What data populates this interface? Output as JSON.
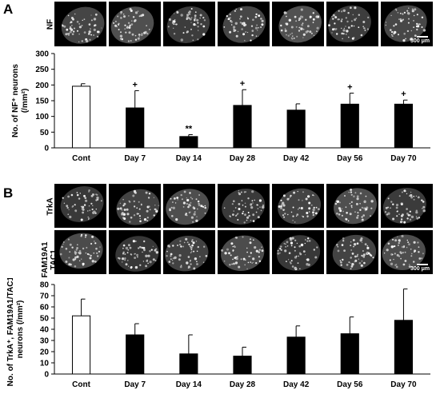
{
  "panels": [
    {
      "letter": "A",
      "image_rows": [
        {
          "label": "NF"
        }
      ],
      "scale_bar_label": "300 μm",
      "chart_data": {
        "type": "bar",
        "categories": [
          "Cont",
          "Day 7",
          "Day 14",
          "Day 28",
          "Day 42",
          "Day 56",
          "Day 70"
        ],
        "values": [
          196,
          127,
          36,
          135,
          120,
          139,
          139
        ],
        "errors": [
          8,
          55,
          6,
          50,
          20,
          35,
          13
        ],
        "bar_colors": [
          "#ffffff",
          "#000000",
          "#000000",
          "#000000",
          "#000000",
          "#000000",
          "#000000"
        ],
        "annotations": [
          "",
          "+",
          "**",
          "+",
          "",
          "+",
          "+"
        ],
        "ylabel": "No. of NF⁺ neurons\n(/mm²)",
        "ylim": [
          0,
          300
        ],
        "yticks": [
          0,
          50,
          100,
          150,
          200,
          250,
          300
        ],
        "grid": false
      }
    },
    {
      "letter": "B",
      "image_rows": [
        {
          "label": "TrkA"
        },
        {
          "label": "FAM19A1\nTAC1"
        }
      ],
      "scale_bar_label": "300 μm",
      "chart_data": {
        "type": "bar",
        "categories": [
          "Cont",
          "Day 7",
          "Day 14",
          "Day 28",
          "Day 42",
          "Day 56",
          "Day 70"
        ],
        "values": [
          52,
          35,
          18,
          16,
          33,
          36,
          48
        ],
        "errors": [
          15,
          10,
          17,
          8,
          10,
          15,
          28
        ],
        "bar_colors": [
          "#ffffff",
          "#000000",
          "#000000",
          "#000000",
          "#000000",
          "#000000",
          "#000000"
        ],
        "annotations": [
          "",
          "",
          "",
          "",
          "",
          "",
          ""
        ],
        "ylabel": "No. of TrkA⁺, FAM19A1/TAC1⁻\nneurons (/mm²)",
        "ylim": [
          0,
          80
        ],
        "yticks": [
          0,
          10,
          20,
          30,
          40,
          50,
          60,
          70,
          80
        ],
        "grid": false
      }
    }
  ]
}
